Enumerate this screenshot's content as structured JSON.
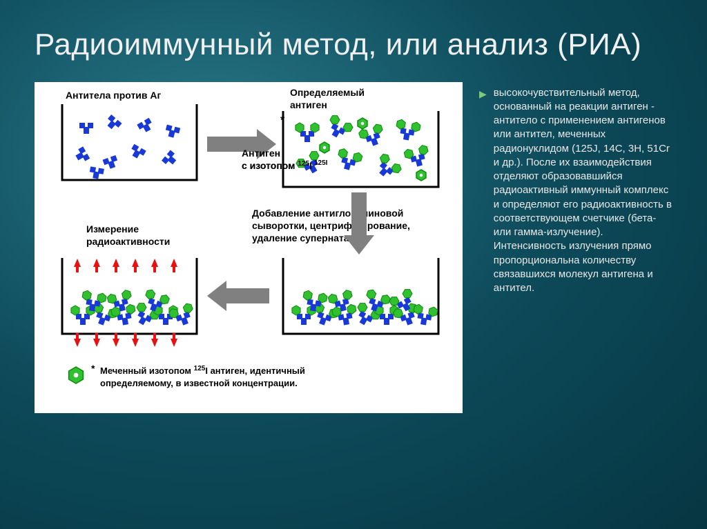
{
  "title": "Радиоиммунный метод, или анализ (РИА)",
  "bullet_text": "высокочувствительный метод, основанный на реакции антиген - антитело с применением антигенов или антител, меченных радионуклидом (125J, 14C, 3H, 51Cr и др.). После их взаимодействия отделяют образовавшийся радиоактивный иммунный комплекс и определяют его радиоактивность в соответствующем счетчике (бета- или гамма-излучение). Интенсивность излучения прямо пропорциональна количеству связавшихся молекул антигена и антител.",
  "diagram": {
    "background": "#ffffff",
    "border_color": "#000000",
    "labels": {
      "l1": "Антитела  против Аг",
      "l2a": "Определяемый",
      "l2b": "антиген",
      "l3a": "Антиген",
      "l3b": "с изотопом",
      "l3c": "125I",
      "l4a": "Измерение",
      "l4b": "радиоактивности",
      "l5a": "Добавление антиглобулиновой",
      "l5b": "сыворотки, центрифугирование,",
      "l5c": "удаление супернатанта",
      "legend1": "Меченный изотопом",
      "legend1b": "I антиген, идентичный",
      "legend2": "определяемому, в известной концентрации.",
      "legend_iso": "125",
      "star": "*"
    },
    "colors": {
      "antibody": "#1838d8",
      "antigen_green": "#30c030",
      "antigen_green_dark": "#0a8a0a",
      "arrow_red": "#e81010",
      "arrow_gray": "#808080",
      "text": "#000000",
      "container_stroke": "#000000"
    },
    "font_sizes": {
      "label": 14,
      "legend": 13,
      "superscript": 10
    }
  }
}
